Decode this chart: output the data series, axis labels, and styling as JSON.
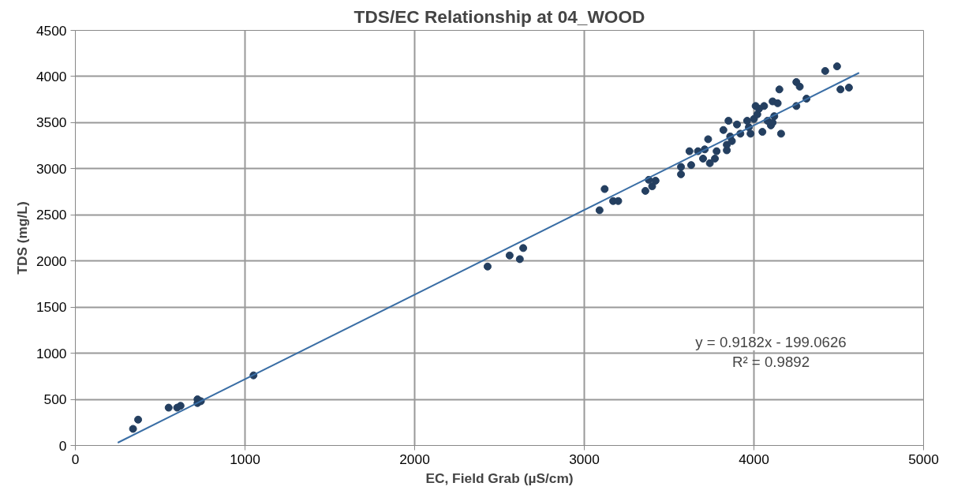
{
  "chart_data": {
    "type": "scatter",
    "title": "TDS/EC Relationship at 04_WOOD",
    "xlabel": "EC, Field Grab (µS/cm)",
    "ylabel": "TDS (mg/L)",
    "xlim": [
      0,
      5000
    ],
    "xticks": [
      0,
      1000,
      2000,
      3000,
      4000,
      5000
    ],
    "ylim": [
      0,
      4500
    ],
    "yticks": [
      0,
      500,
      1000,
      1500,
      2000,
      2500,
      3000,
      3500,
      4000,
      4500
    ],
    "grid": true,
    "annotations": [
      "y = 0.9182x - 199.0626",
      "R² = 0.9892"
    ],
    "series": [
      {
        "marker": "circle",
        "color": "#243f60",
        "x": [
          340,
          370,
          550,
          600,
          620,
          720,
          720,
          740,
          1050,
          2430,
          2560,
          2620,
          2640,
          3090,
          3120,
          3170,
          3200,
          3360,
          3380,
          3400,
          3420,
          3570,
          3570,
          3620,
          3630,
          3670,
          3700,
          3710,
          3730,
          3740,
          3770,
          3780,
          3820,
          3840,
          3840,
          3850,
          3860,
          3870,
          3900,
          3920,
          3960,
          3970,
          3980,
          4000,
          4010,
          4020,
          4030,
          4060,
          4050,
          4080,
          4100,
          4110,
          4110,
          4120,
          4140,
          4150,
          4160,
          4250,
          4250,
          4270,
          4310,
          4420,
          4490,
          4510,
          4560
        ],
        "values": [
          180,
          280,
          410,
          410,
          430,
          500,
          460,
          480,
          760,
          1940,
          2060,
          2020,
          2140,
          2550,
          2780,
          2650,
          2650,
          2760,
          2880,
          2810,
          2870,
          2940,
          3020,
          3190,
          3040,
          3190,
          3110,
          3210,
          3320,
          3060,
          3110,
          3190,
          3420,
          3260,
          3200,
          3520,
          3350,
          3300,
          3480,
          3380,
          3520,
          3450,
          3380,
          3540,
          3680,
          3590,
          3650,
          3680,
          3400,
          3520,
          3470,
          3730,
          3500,
          3570,
          3710,
          3860,
          3380,
          3940,
          3680,
          3890,
          3760,
          4060,
          4110,
          3860,
          3880
        ]
      },
      {
        "type": "line",
        "color": "#3a6ea5",
        "line_style": "solid",
        "x": [
          250,
          4620
        ],
        "values": [
          30,
          4040
        ]
      }
    ]
  }
}
